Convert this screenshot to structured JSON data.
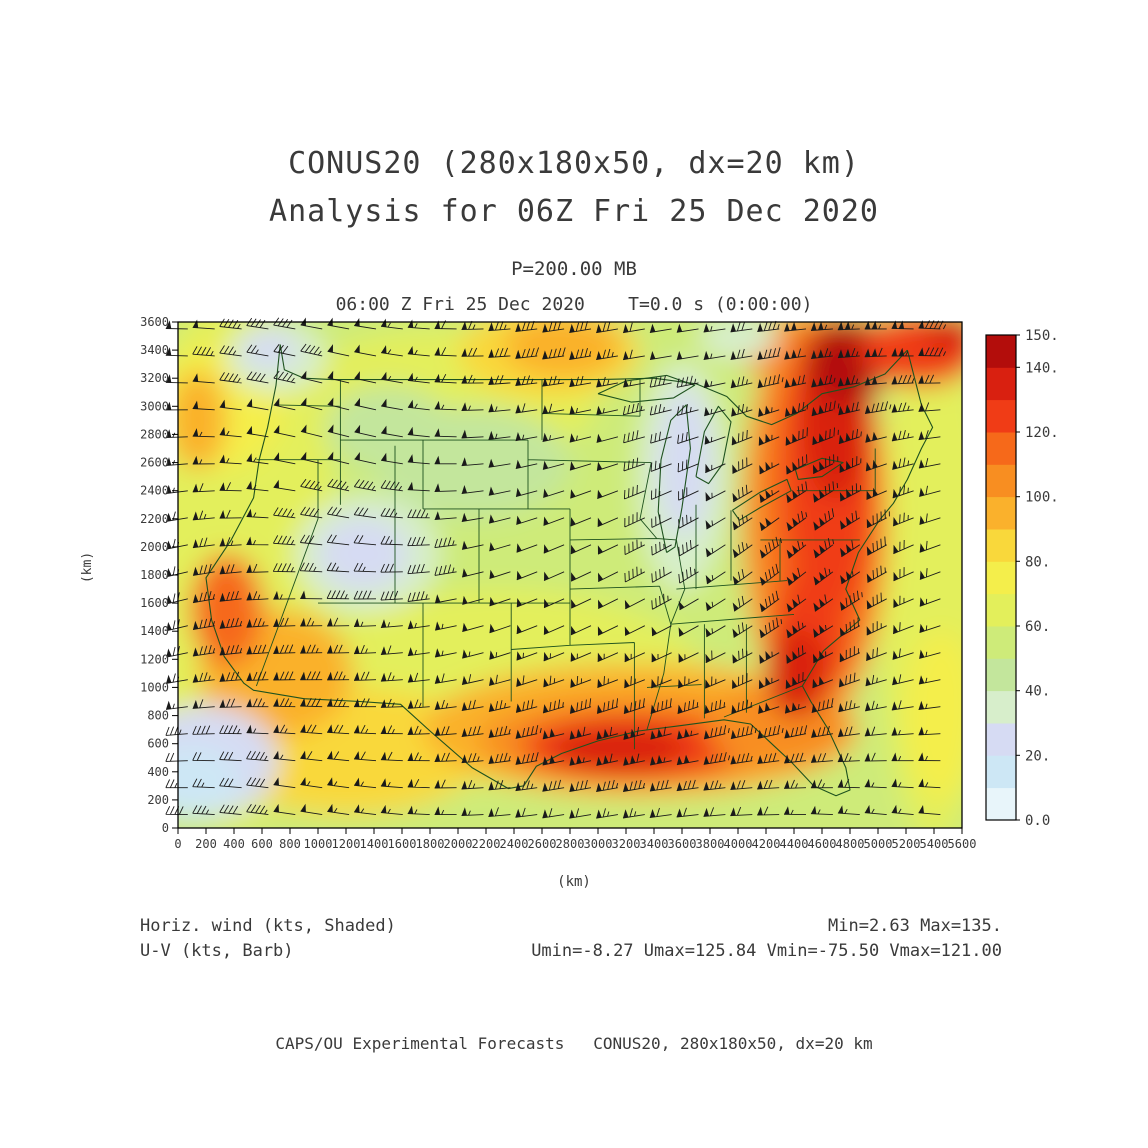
{
  "header": {
    "title": "CONUS20 (280x180x50, dx=20 km)",
    "subtitle": "Analysis for 06Z Fri 25 Dec 2020",
    "level": "P=200.00 MB",
    "valid_line": "06:00 Z Fri 25 Dec 2020    T=0.0 s (0:00:00)"
  },
  "axes": {
    "x_label": "(km)",
    "y_label": "(km)"
  },
  "annotations": {
    "shaded_label": "Horiz. wind (kts, Shaded)",
    "barb_label": "U-V (kts, Barb)",
    "minmax": "Min=2.63 Max=135.",
    "uv_stats": "Umin=-8.27 Umax=125.84 Vmin=-75.50 Vmax=121.00"
  },
  "footer": {
    "credit": "CAPS/OU Experimental Forecasts   CONUS20, 280x180x50, dx=20 km"
  },
  "chart_data": {
    "type": "heatmap",
    "title": "CONUS20 (280x180x50, dx=20 km) Analysis for 06Z Fri 25 Dec 2020",
    "field": "Horizontal wind speed (kts, shaded) with U-V wind barbs (kts)",
    "pressure_level_mb": 200.0,
    "valid_time": "06:00 Z Fri 25 Dec 2020",
    "forecast_time": "T=0.0 s (0:00:00)",
    "x_range_km": [
      0,
      5600
    ],
    "y_range_km": [
      0,
      3600
    ],
    "axis_tick_step_km": 200,
    "shade_levels_kts": [
      0,
      10,
      20,
      30,
      40,
      50,
      60,
      70,
      80,
      90,
      100,
      110,
      120,
      130,
      140,
      150
    ],
    "palette": [
      "#E8F5FA",
      "#CDE7F5",
      "#D6DBF3",
      "#D7EECB",
      "#C3E69C",
      "#CEEB79",
      "#E3EF5B",
      "#F4EE4B",
      "#F9D83B",
      "#FAB12C",
      "#F88E21",
      "#F6691A",
      "#F03C16",
      "#D92010",
      "#B30D0B"
    ],
    "colorbar_tick_values": [
      0,
      20,
      40,
      60,
      80,
      100,
      120,
      140,
      150
    ],
    "colorbar_tick_labels": [
      "0.0",
      "20.",
      "40.",
      "60.",
      "80.",
      "100.",
      "120.",
      "140.",
      "150."
    ],
    "stats": {
      "min_kts": 2.63,
      "max_kts": 135,
      "umin_kts": -8.27,
      "umax_kts": 125.84,
      "vmin_kts": -75.5,
      "vmax_kts": 121.0
    },
    "base_value_kts": 55,
    "field_regions": [
      [
        400,
        1900,
        750,
        1900,
        65
      ],
      [
        1900,
        3050,
        1100,
        500,
        65
      ],
      [
        2300,
        1000,
        1500,
        700,
        65
      ],
      [
        5400,
        1800,
        400,
        1900,
        65
      ],
      [
        300,
        3000,
        450,
        450,
        75
      ],
      [
        1200,
        550,
        1000,
        450,
        85
      ],
      [
        700,
        1100,
        550,
        450,
        95
      ],
      [
        350,
        1550,
        260,
        400,
        115
      ],
      [
        140,
        2900,
        200,
        350,
        95
      ],
      [
        2650,
        3380,
        650,
        320,
        85
      ],
      [
        2750,
        3430,
        420,
        220,
        95
      ],
      [
        4600,
        3400,
        600,
        260,
        105
      ],
      [
        5450,
        800,
        250,
        600,
        78
      ],
      [
        3300,
        700,
        1550,
        470,
        95
      ],
      [
        3300,
        620,
        1150,
        320,
        105
      ],
      [
        3250,
        580,
        800,
        230,
        122
      ],
      [
        3150,
        560,
        480,
        160,
        133
      ],
      [
        4300,
        720,
        520,
        300,
        105
      ],
      [
        4550,
        2200,
        520,
        1450,
        105
      ],
      [
        4600,
        2300,
        400,
        1300,
        115
      ],
      [
        4650,
        2500,
        310,
        1050,
        125
      ],
      [
        4700,
        2950,
        260,
        620,
        135
      ],
      [
        4790,
        3320,
        300,
        300,
        145
      ],
      [
        4500,
        1350,
        260,
        480,
        125
      ],
      [
        4420,
        1100,
        220,
        320,
        135
      ],
      [
        5300,
        3400,
        420,
        260,
        125
      ],
      [
        5520,
        3520,
        200,
        140,
        138
      ],
      [
        2100,
        2600,
        700,
        400,
        48
      ],
      [
        1500,
        2850,
        450,
        300,
        48
      ],
      [
        1350,
        1950,
        520,
        420,
        38
      ],
      [
        1320,
        1950,
        320,
        260,
        26
      ],
      [
        3600,
        2500,
        320,
        820,
        38
      ],
      [
        3620,
        2600,
        190,
        520,
        27
      ],
      [
        700,
        3350,
        360,
        260,
        38
      ],
      [
        650,
        3400,
        200,
        140,
        27
      ],
      [
        200,
        480,
        520,
        400,
        28
      ],
      [
        90,
        330,
        360,
        260,
        15
      ],
      [
        4000,
        3490,
        280,
        160,
        38
      ]
    ],
    "map_outline_color": "#1e521e",
    "barb_color": "#1a1a1a",
    "text_color": "#3a3a3a"
  }
}
